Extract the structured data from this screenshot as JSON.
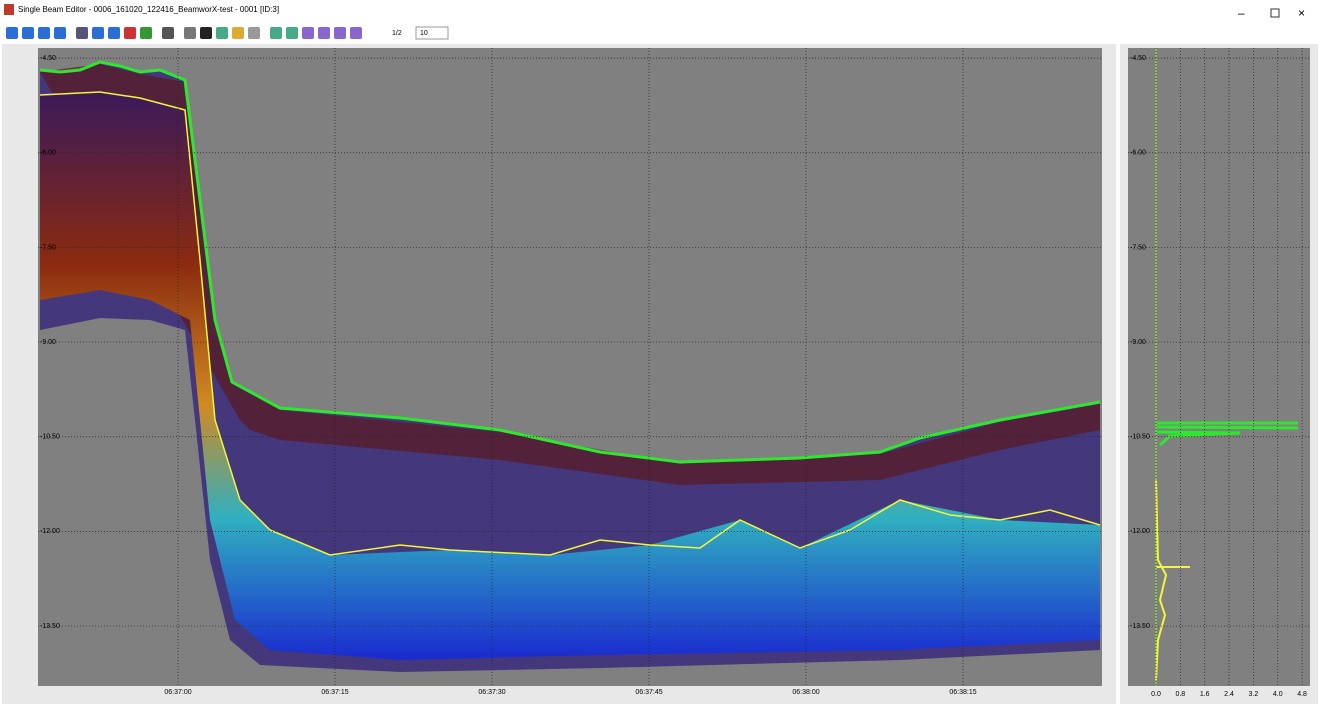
{
  "window": {
    "title": "Single Beam Editor - 0006_161020_122416_BeamworX-test - 0001 [ID:3]"
  },
  "toolbar": {
    "page": "1/2",
    "zoom": "10"
  },
  "echogram": {
    "yticks": [
      {
        "value": -4.5,
        "label": "-4.50"
      },
      {
        "value": -6,
        "label": "-6.00"
      },
      {
        "value": -7.5,
        "label": "-7.50"
      },
      {
        "value": -9,
        "label": "-9.00"
      },
      {
        "value": -10.5,
        "label": "-10.50"
      },
      {
        "value": -12,
        "label": "-12.00"
      },
      {
        "value": -13.5,
        "label": "-13.50"
      }
    ],
    "ylim": [
      -4.34,
      -14.45
    ],
    "xticks": [
      "06:37:00",
      "06:37:15",
      "06:37:30",
      "06:37:45",
      "06:38:00",
      "06:38:15"
    ]
  },
  "histogram": {
    "yticks": [
      {
        "value": -4.5,
        "label": "-4.50"
      },
      {
        "value": -6,
        "label": "-6.00"
      },
      {
        "value": -7.5,
        "label": "-7.50"
      },
      {
        "value": -9,
        "label": "-9.00"
      },
      {
        "value": -10.5,
        "label": "-10.50"
      },
      {
        "value": -12,
        "label": "-12.00"
      },
      {
        "value": -13.5,
        "label": "-13.50"
      }
    ],
    "ylim": [
      -4.34,
      -14.45
    ],
    "xticks": [
      {
        "value": 0,
        "label": "0.0"
      },
      0.8,
      1.6,
      2.4,
      3.2,
      {
        "value": 4,
        "label": "4.0"
      },
      4.8
    ],
    "xlim": [
      -0.92,
      5.06
    ]
  }
}
